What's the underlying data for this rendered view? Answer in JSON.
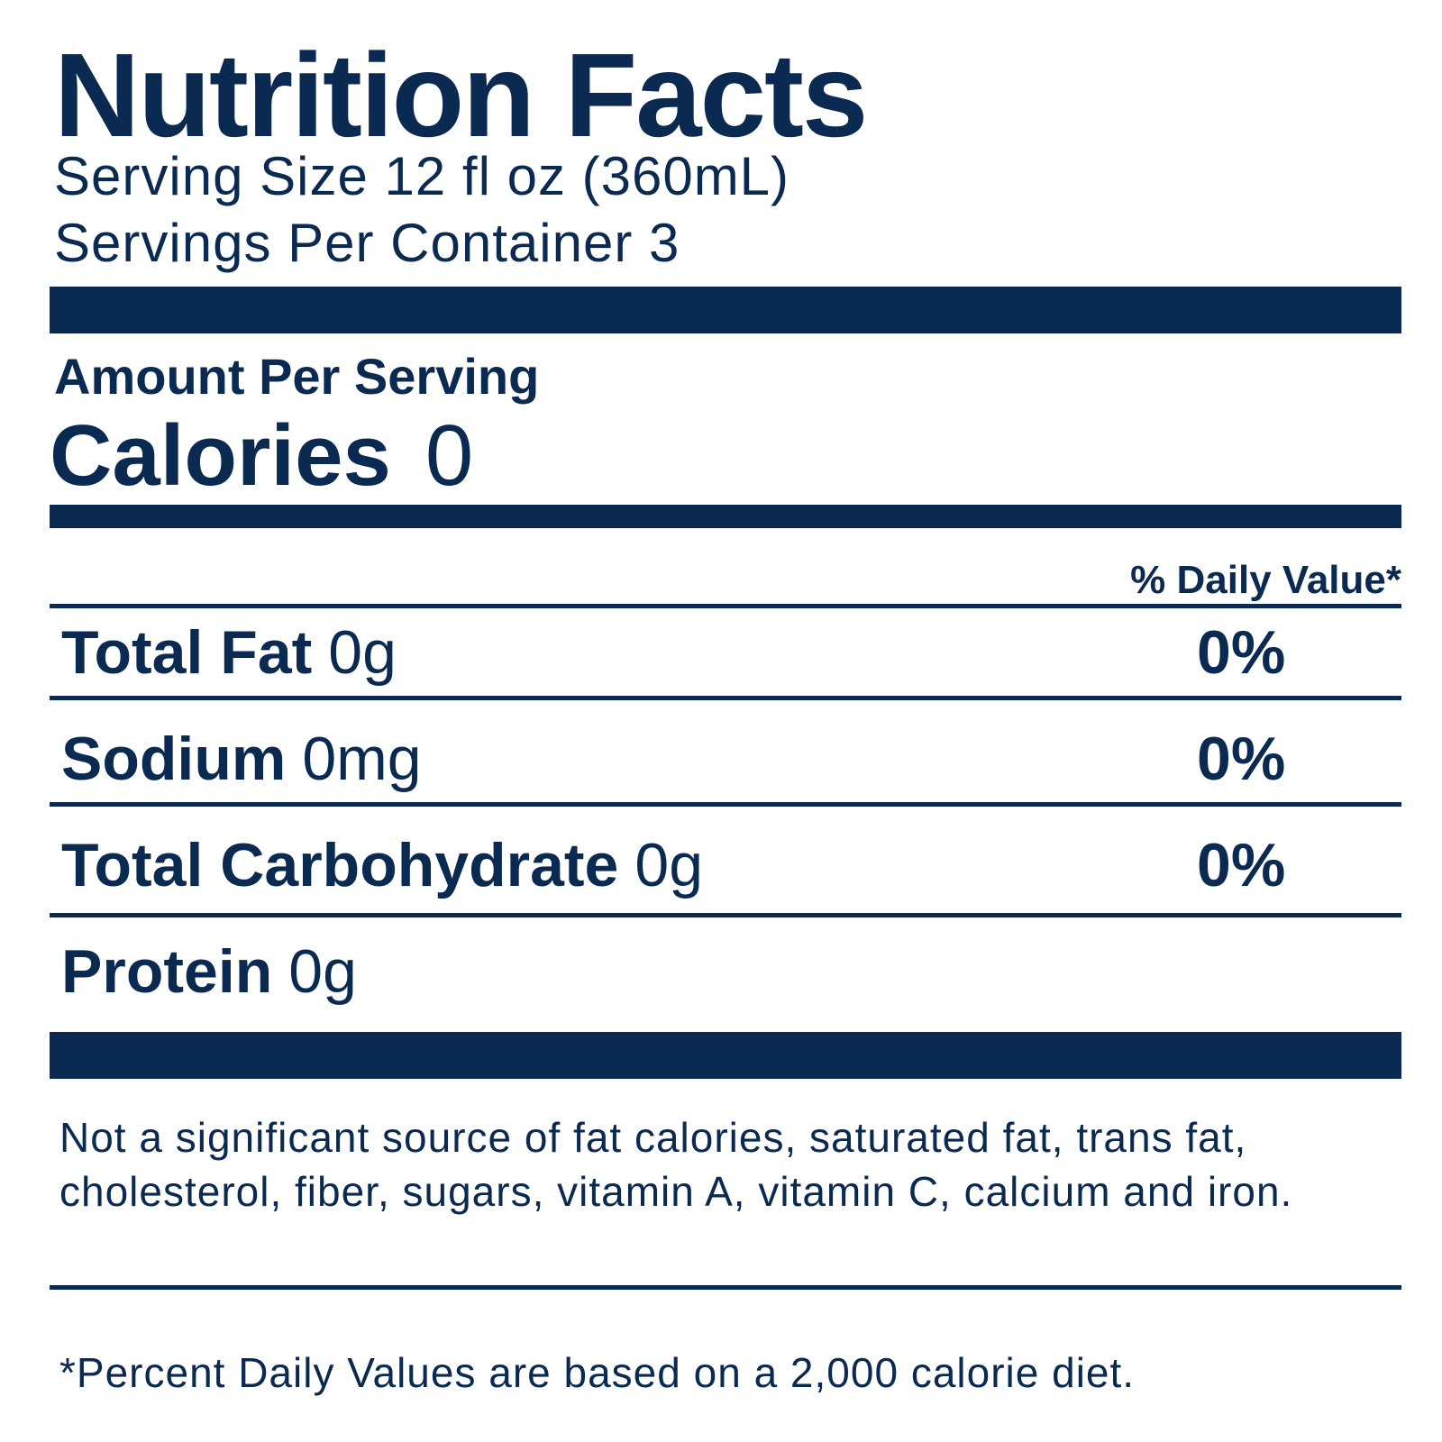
{
  "label": {
    "title": "Nutrition Facts",
    "serving_size": "Serving Size 12 fl oz (360mL)",
    "servings_per_container": "Servings Per Container 3",
    "amount_per_serving": "Amount Per Serving",
    "calories": {
      "label": "Calories",
      "value": "0"
    },
    "daily_value_header": "% Daily Value*",
    "nutrients": [
      {
        "name": "Total Fat",
        "amount": "0g",
        "percent": "0%"
      },
      {
        "name": "Sodium",
        "amount": "0mg",
        "percent": "0%"
      },
      {
        "name": "Total Carbohydrate",
        "amount": "0g",
        "percent": "0%"
      },
      {
        "name": "Protein",
        "amount": "0g",
        "percent": ""
      }
    ],
    "not_significant_note": "Not a significant source of fat calories, saturated fat, trans fat, cholesterol, fiber, sugars, vitamin A, vitamin C, calcium and iron.",
    "daily_value_note": "*Percent Daily Values are based on a 2,000 calorie diet."
  },
  "colors": {
    "ink": "#0b2a52",
    "background": "#ffffff"
  }
}
